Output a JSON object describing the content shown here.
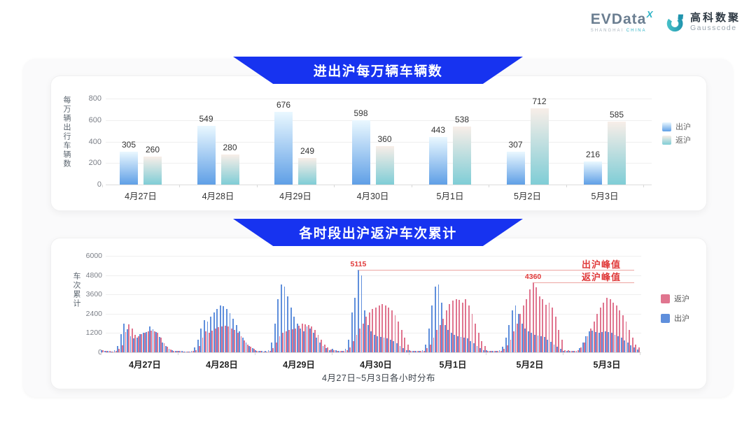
{
  "header": {
    "evdata": {
      "text": "EVData",
      "superscript": "X",
      "subtext_left": "SHANGHAI",
      "subtext_right": "CHINA"
    },
    "gausscode": {
      "cn": "高科数聚",
      "en": "Gausscode"
    }
  },
  "colors": {
    "banner_blue": "#1733f0",
    "chu_hour_bar": "#5f8fdc",
    "fan_hour_bar": "#e0758f",
    "annotation_red": "#e03a3a",
    "annotation_line": "#eda5a2",
    "grid": "#efefef",
    "axis": "#dcdcdc",
    "teal_accent": "#2fb3c6"
  },
  "chart_data": [
    {
      "type": "bar",
      "title": "进出沪每万辆车辆数",
      "ylabel": "每万辆出行车辆数",
      "ylim": [
        0,
        800
      ],
      "yticks": [
        0,
        200,
        400,
        600,
        800
      ],
      "grid": true,
      "legend_position": "right",
      "categories": [
        "4月27日",
        "4月28日",
        "4月29日",
        "4月30日",
        "5月1日",
        "5月2日",
        "5月3日"
      ],
      "series": [
        {
          "name": "出沪",
          "gradient": [
            "#eaf8ff",
            "#5f9fe6"
          ],
          "values": [
            305,
            549,
            676,
            598,
            443,
            307,
            216
          ]
        },
        {
          "name": "返沪",
          "gradient": [
            "#f8eee8",
            "#7fcdd6"
          ],
          "values": [
            260,
            280,
            249,
            360,
            538,
            712,
            585
          ]
        }
      ]
    },
    {
      "type": "bar",
      "title": "各时段出沪返沪车次累计",
      "ylabel": "车次累计",
      "xlabel": "4月27日~5月3日各小时分布",
      "ylim": [
        0,
        6000
      ],
      "yticks": [
        0,
        1200,
        2400,
        3600,
        4800,
        6000
      ],
      "grid": true,
      "legend_position": "right",
      "hours_per_day": 24,
      "categories": [
        "4月27日",
        "4月28日",
        "4月29日",
        "4月30日",
        "5月1日",
        "5月2日",
        "5月3日"
      ],
      "legend_order": [
        "返沪",
        "出沪"
      ],
      "series": [
        {
          "name": "出沪",
          "color": "#5f8fdc",
          "values": [
            150,
            100,
            80,
            60,
            120,
            400,
            1150,
            1800,
            1450,
            1000,
            850,
            900,
            1150,
            1200,
            1250,
            1600,
            1450,
            1250,
            950,
            600,
            380,
            200,
            120,
            80,
            100,
            80,
            60,
            60,
            100,
            300,
            800,
            1500,
            2000,
            1900,
            2200,
            2500,
            2700,
            2900,
            2850,
            2700,
            2450,
            2100,
            1700,
            1300,
            900,
            600,
            400,
            250,
            150,
            100,
            80,
            80,
            150,
            600,
            1800,
            3300,
            4200,
            4100,
            3500,
            2800,
            2200,
            1800,
            1500,
            1300,
            1600,
            1500,
            1200,
            900,
            600,
            400,
            250,
            150,
            200,
            120,
            100,
            100,
            200,
            800,
            2500,
            3400,
            5115,
            4800,
            2600,
            1700,
            1300,
            1100,
            1000,
            950,
            900,
            850,
            800,
            700,
            550,
            400,
            250,
            150,
            120,
            100,
            80,
            80,
            150,
            500,
            1500,
            2900,
            4100,
            4200,
            3100,
            1700,
            1400,
            1200,
            1100,
            1000,
            950,
            900,
            850,
            700,
            550,
            400,
            250,
            150,
            120,
            90,
            80,
            80,
            120,
            350,
            900,
            1700,
            2600,
            2900,
            2400,
            1800,
            1500,
            1300,
            1200,
            1100,
            1050,
            1000,
            950,
            800,
            650,
            500,
            350,
            200,
            100,
            80,
            70,
            70,
            100,
            250,
            600,
            1000,
            1300,
            1350,
            1250,
            1200,
            1250,
            1300,
            1250,
            1200,
            1100,
            1000,
            900,
            750,
            600,
            450,
            300,
            180
          ]
        },
        {
          "name": "返沪",
          "color": "#e0758f",
          "values": [
            120,
            90,
            70,
            60,
            90,
            200,
            450,
            1250,
            1750,
            1500,
            1100,
            1000,
            1150,
            1200,
            1300,
            1350,
            1300,
            1200,
            900,
            550,
            350,
            180,
            100,
            70,
            80,
            60,
            50,
            50,
            80,
            150,
            400,
            900,
            1300,
            1200,
            1350,
            1500,
            1550,
            1600,
            1650,
            1600,
            1500,
            1400,
            1200,
            1000,
            750,
            500,
            350,
            200,
            100,
            80,
            60,
            60,
            100,
            250,
            600,
            1000,
            1200,
            1300,
            1400,
            1450,
            1500,
            1650,
            1800,
            1750,
            1700,
            1600,
            1400,
            1100,
            800,
            500,
            300,
            180,
            150,
            100,
            80,
            80,
            150,
            300,
            700,
            1100,
            1500,
            1800,
            2200,
            2500,
            2700,
            2800,
            2900,
            3000,
            2900,
            2800,
            2600,
            2300,
            1900,
            1400,
            900,
            500,
            100,
            80,
            70,
            70,
            100,
            250,
            500,
            900,
            1400,
            1700,
            2100,
            2600,
            3000,
            3200,
            3300,
            3250,
            3100,
            3300,
            2900,
            2400,
            1800,
            1200,
            700,
            400,
            100,
            80,
            70,
            70,
            100,
            200,
            450,
            800,
            1300,
            1800,
            2400,
            2900,
            3300,
            3900,
            4360,
            4050,
            3500,
            3300,
            2950,
            3100,
            2800,
            2200,
            1400,
            800,
            150,
            120,
            100,
            100,
            150,
            300,
            600,
            1000,
            1500,
            1900,
            2400,
            2800,
            3100,
            3400,
            3300,
            3100,
            2900,
            2600,
            2300,
            1900,
            1400,
            900,
            500,
            300
          ]
        }
      ],
      "annotations": [
        {
          "series": "出沪",
          "label": "出沪峰值",
          "value": 5115
        },
        {
          "series": "返沪",
          "label": "返沪峰值",
          "value": 4360
        }
      ]
    }
  ]
}
